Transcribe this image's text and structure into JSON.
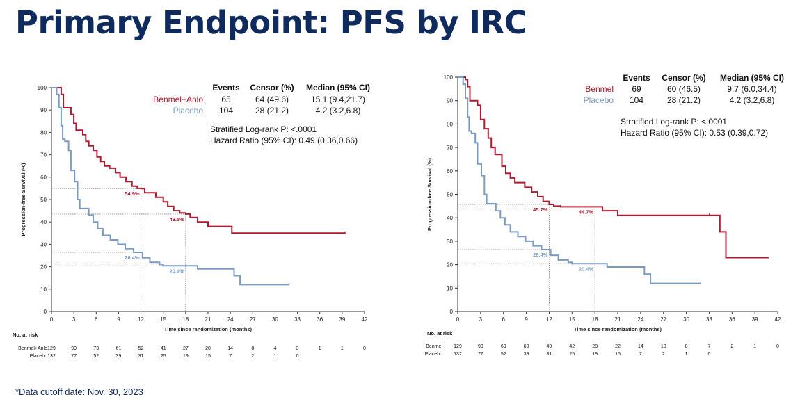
{
  "page": {
    "title": "Primary Endpoint: PFS by IRC",
    "footnote": "*Data cutoff  date: Nov. 30, 2023"
  },
  "colors": {
    "treatment": "#b01a2e",
    "placebo": "#7a9cc4",
    "title": "#0f2a5c"
  },
  "chart_data": [
    {
      "type": "line",
      "ylabel": "Progression-free Survival (%)",
      "xlabel": "Time since randomization (months)",
      "xlim": [
        0,
        42
      ],
      "ylim": [
        0,
        100
      ],
      "xticks": [
        0,
        3,
        6,
        9,
        12,
        15,
        18,
        21,
        24,
        27,
        30,
        33,
        36,
        39,
        42
      ],
      "xtick_labels": [
        "0",
        "3",
        "6",
        "9",
        "12",
        "15",
        "18",
        "21",
        "24",
        "27",
        "30",
        "33",
        "36",
        "39",
        "42"
      ],
      "yticks": [
        0,
        10,
        20,
        30,
        40,
        50,
        60,
        70,
        80,
        90,
        100
      ],
      "ytick_labels": [
        "0",
        "10",
        "20",
        "30",
        "40",
        "50",
        "60",
        "70",
        "80",
        "90",
        "100"
      ],
      "table": {
        "headers": [
          "Events",
          "Censor (%)",
          "Median (95% CI)"
        ],
        "rows": [
          {
            "name": "Benmel+Anlo",
            "events": "65",
            "censor": "64 (49.6)",
            "median": "15.1 (9.4,21.7)"
          },
          {
            "name": "Placebo",
            "events": "104",
            "censor": "28 (21.2)",
            "median": "4.2 (3.2,6.8)"
          }
        ]
      },
      "stats": [
        "Stratified Log-rank P: <.0001",
        "Hazard Ratio (95% CI): 0.49 (0.36,0.66)"
      ],
      "annotations": [
        {
          "text": "54.9%",
          "x": 12,
          "y": 54.9,
          "series": 0
        },
        {
          "text": "43.5%",
          "x": 18,
          "y": 43.5,
          "series": 0
        },
        {
          "text": "26.4%",
          "x": 12,
          "y": 26.4,
          "series": 1
        },
        {
          "text": "20.4%",
          "x": 18,
          "y": 20.4,
          "series": 1
        }
      ],
      "risk_table": {
        "title": "No. at risk",
        "rows": [
          {
            "name": "Benmel+Anlo",
            "values": [
              "129",
              "99",
              "73",
              "61",
              "52",
              "41",
              "27",
              "20",
              "14",
              "8",
              "4",
              "3",
              "1",
              "1",
              "0"
            ]
          },
          {
            "name": "Placebo",
            "values": [
              "132",
              "77",
              "52",
              "39",
              "31",
              "25",
              "19",
              "15",
              "7",
              "2",
              "1",
              "0"
            ]
          }
        ]
      },
      "series": [
        {
          "name": "Benmel+Anlo",
          "color": "#b01a2e",
          "points": [
            [
              0,
              100
            ],
            [
              1,
              100
            ],
            [
              1.3,
              97
            ],
            [
              1.6,
              91
            ],
            [
              2.6,
              88
            ],
            [
              3,
              84
            ],
            [
              3.3,
              81
            ],
            [
              4.2,
              79
            ],
            [
              4.6,
              76
            ],
            [
              5,
              74
            ],
            [
              5.6,
              72
            ],
            [
              6.1,
              69
            ],
            [
              6.6,
              67
            ],
            [
              7.1,
              65
            ],
            [
              7.8,
              64
            ],
            [
              8.6,
              62
            ],
            [
              9.2,
              60
            ],
            [
              10,
              58
            ],
            [
              10.8,
              56
            ],
            [
              11.5,
              55
            ],
            [
              12,
              54.9
            ],
            [
              12.5,
              53
            ],
            [
              14,
              51
            ],
            [
              15,
              49
            ],
            [
              15.6,
              47
            ],
            [
              16.4,
              45
            ],
            [
              17.2,
              44
            ],
            [
              18,
              43.5
            ],
            [
              18.6,
              42
            ],
            [
              19.6,
              40
            ],
            [
              21,
              38
            ],
            [
              24.2,
              35
            ],
            [
              39.4,
              35
            ]
          ]
        },
        {
          "name": "Placebo",
          "color": "#7a9cc4",
          "points": [
            [
              0,
              100
            ],
            [
              0.7,
              97
            ],
            [
              1,
              91
            ],
            [
              1.3,
              83
            ],
            [
              1.5,
              77
            ],
            [
              1.8,
              76
            ],
            [
              2.3,
              72
            ],
            [
              2.6,
              63
            ],
            [
              3.1,
              58
            ],
            [
              3.5,
              50
            ],
            [
              3.8,
              46
            ],
            [
              5,
              43
            ],
            [
              5.6,
              40
            ],
            [
              6.2,
              37
            ],
            [
              6.9,
              34
            ],
            [
              7.9,
              32
            ],
            [
              8.9,
              30
            ],
            [
              9.9,
              28
            ],
            [
              11,
              26.4
            ],
            [
              12.2,
              24
            ],
            [
              13.2,
              22
            ],
            [
              14.5,
              21
            ],
            [
              15,
              20.4
            ],
            [
              19.6,
              19
            ],
            [
              24.5,
              16
            ],
            [
              25.3,
              12
            ],
            [
              31.9,
              12
            ]
          ]
        }
      ]
    },
    {
      "type": "line",
      "ylabel": "Progression-free Survival (%)",
      "xlabel": "Time since randomization (months)",
      "xlim": [
        0,
        42
      ],
      "ylim": [
        0,
        100
      ],
      "xticks": [
        0,
        3,
        6,
        9,
        12,
        15,
        18,
        21,
        24,
        27,
        30,
        33,
        36,
        39,
        42
      ],
      "xtick_labels": [
        "0",
        "3",
        "6",
        "9",
        "12",
        "15",
        "18",
        "21",
        "24",
        "27",
        "30",
        "33",
        "36",
        "39",
        "42"
      ],
      "yticks": [
        0,
        10,
        20,
        30,
        40,
        50,
        60,
        70,
        80,
        90,
        100
      ],
      "ytick_labels": [
        "0",
        "10",
        "20",
        "30",
        "40",
        "50",
        "60",
        "70",
        "80",
        "90",
        "100"
      ],
      "table": {
        "headers": [
          "Events",
          "Censor (%)",
          "Median (95% CI)"
        ],
        "rows": [
          {
            "name": "Benmel",
            "events": "69",
            "censor": "60 (46.5)",
            "median": "9.7 (6.0,34.4)"
          },
          {
            "name": "Placebo",
            "events": "104",
            "censor": "28 (21.2)",
            "median": "4.2 (3.2,6.8)"
          }
        ]
      },
      "stats": [
        "Stratified Log-rank P: <.0001",
        "Hazard Ratio (95% CI): 0.53 (0.39,0.72)"
      ],
      "annotations": [
        {
          "text": "45.7%",
          "x": 12,
          "y": 45.7,
          "series": 0
        },
        {
          "text": "44.7%",
          "x": 18,
          "y": 44.7,
          "series": 0
        },
        {
          "text": "26.4%",
          "x": 12,
          "y": 26.4,
          "series": 1
        },
        {
          "text": "20.4%",
          "x": 18,
          "y": 20.4,
          "series": 1
        }
      ],
      "risk_table": {
        "title": "No. at risk",
        "rows": [
          {
            "name": "Benmel",
            "values": [
              "129",
              "99",
              "69",
              "60",
              "49",
              "42",
              "28",
              "22",
              "14",
              "10",
              "8",
              "7",
              "2",
              "1",
              "0"
            ]
          },
          {
            "name": "Placebo",
            "values": [
              "132",
              "77",
              "52",
              "39",
              "31",
              "25",
              "19",
              "15",
              "7",
              "2",
              "1",
              "0"
            ]
          }
        ]
      },
      "series": [
        {
          "name": "Benmel",
          "color": "#b01a2e",
          "points": [
            [
              0,
              100
            ],
            [
              1,
              99
            ],
            [
              1.3,
              96
            ],
            [
              1.6,
              90
            ],
            [
              2.6,
              88
            ],
            [
              3,
              82
            ],
            [
              3.5,
              78
            ],
            [
              4,
              74
            ],
            [
              4.4,
              70
            ],
            [
              4.9,
              67
            ],
            [
              5.8,
              62
            ],
            [
              6.3,
              59
            ],
            [
              6.9,
              57
            ],
            [
              7.5,
              55
            ],
            [
              8.8,
              53
            ],
            [
              9.7,
              51
            ],
            [
              10.5,
              49
            ],
            [
              11.2,
              47
            ],
            [
              12,
              45.7
            ],
            [
              12.6,
              45
            ],
            [
              13.5,
              44.7
            ],
            [
              18,
              44.7
            ],
            [
              19,
              43
            ],
            [
              21,
              41
            ],
            [
              33,
              41
            ],
            [
              34.4,
              34
            ],
            [
              35.2,
              23
            ],
            [
              40.8,
              23
            ]
          ]
        },
        {
          "name": "Placebo",
          "color": "#7a9cc4",
          "points": [
            [
              0,
              100
            ],
            [
              0.7,
              97
            ],
            [
              1,
              91
            ],
            [
              1.3,
              83
            ],
            [
              1.5,
              77
            ],
            [
              1.8,
              76
            ],
            [
              2.3,
              72
            ],
            [
              2.6,
              63
            ],
            [
              3.1,
              58
            ],
            [
              3.5,
              50
            ],
            [
              3.8,
              46
            ],
            [
              5,
              43
            ],
            [
              5.6,
              40
            ],
            [
              6.2,
              37
            ],
            [
              6.9,
              34
            ],
            [
              7.9,
              32
            ],
            [
              8.9,
              30
            ],
            [
              9.9,
              28
            ],
            [
              11,
              26.4
            ],
            [
              12.2,
              24
            ],
            [
              13.2,
              22
            ],
            [
              14.5,
              21
            ],
            [
              15,
              20.4
            ],
            [
              19.6,
              19
            ],
            [
              24.5,
              16
            ],
            [
              25.3,
              12
            ],
            [
              31.9,
              12
            ]
          ]
        }
      ]
    }
  ]
}
